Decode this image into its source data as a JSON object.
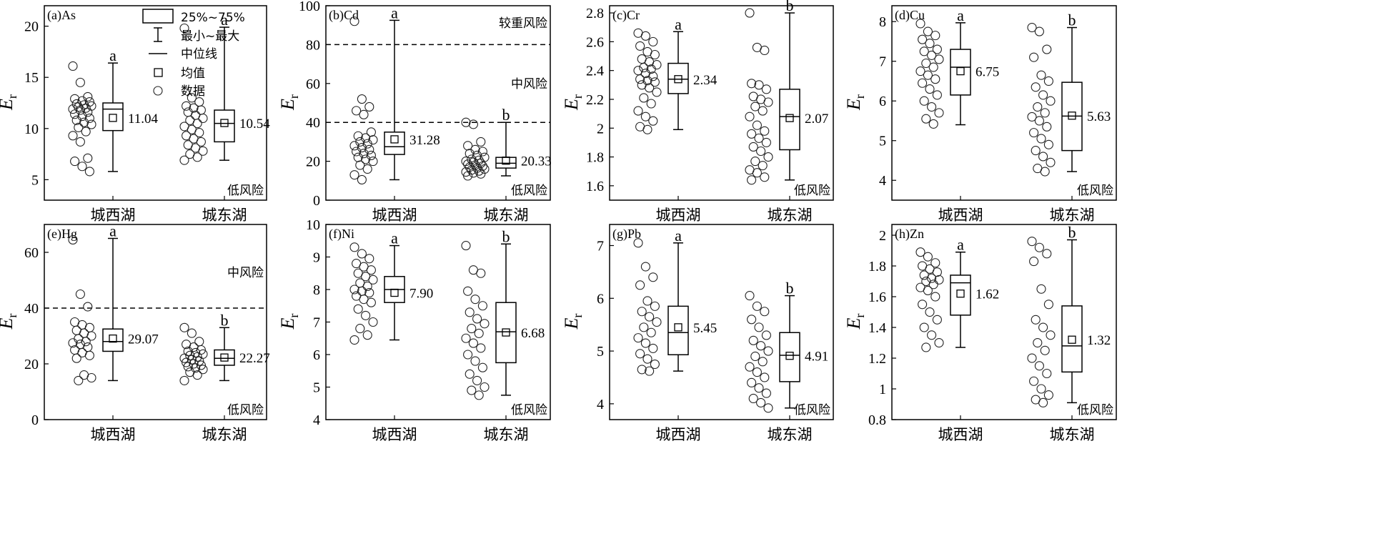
{
  "chart_data": [
    {
      "type": "box",
      "title": "(a)As",
      "ylabel_main": "E",
      "ylabel_sub": "r",
      "ylim": [
        3,
        22
      ],
      "yticks": [
        5,
        10,
        15,
        20
      ],
      "categories": [
        "城西湖",
        "城东湖"
      ],
      "boxes": [
        {
          "category": "城西湖",
          "min": 5.8,
          "q1": 9.8,
          "median": 11.9,
          "q3": 12.5,
          "max": 16.4,
          "mean": 11.04,
          "mean_label": "11.04",
          "sig": "a",
          "points": [
            16.1,
            14.5,
            13.1,
            12.9,
            12.7,
            12.6,
            12.4,
            12.3,
            12.2,
            12.1,
            12.0,
            11.9,
            11.8,
            11.6,
            11.4,
            11.2,
            11.0,
            10.8,
            10.6,
            10.4,
            10.1,
            9.7,
            9.3,
            8.7,
            7.1,
            6.8,
            6.3,
            5.8
          ]
        },
        {
          "category": "城东湖",
          "min": 6.9,
          "q1": 8.7,
          "median": 10.5,
          "q3": 11.8,
          "max": 19.9,
          "mean": 10.54,
          "mean_label": "10.54",
          "sig": "a",
          "points": [
            19.8,
            13.0,
            12.6,
            12.2,
            12.0,
            11.8,
            11.6,
            11.3,
            11.0,
            10.8,
            10.5,
            10.2,
            9.9,
            9.6,
            9.3,
            9.0,
            8.7,
            8.4,
            8.1,
            7.8,
            7.5,
            7.2,
            6.9
          ]
        }
      ],
      "hlines": [],
      "risk_labels": [
        "低风险"
      ]
    },
    {
      "type": "box",
      "title": "(b)Cd",
      "ylabel_main": "E",
      "ylabel_sub": "r",
      "ylim": [
        0,
        100
      ],
      "yticks": [
        0,
        20,
        40,
        60,
        80,
        100
      ],
      "categories": [
        "城西湖",
        "城东湖"
      ],
      "boxes": [
        {
          "category": "城西湖",
          "min": 10.5,
          "q1": 23.5,
          "median": 27.5,
          "q3": 35,
          "max": 92.5,
          "mean": 31.28,
          "mean_label": "31.28",
          "sig": "a",
          "points": [
            92,
            52,
            48,
            46,
            44,
            35,
            33,
            32,
            31,
            30,
            29,
            28,
            27,
            26,
            25,
            24,
            23,
            22,
            21,
            20,
            18,
            16,
            13,
            10.5
          ]
        },
        {
          "category": "城东湖",
          "min": 12.5,
          "q1": 16.5,
          "median": 19,
          "q3": 22,
          "max": 40,
          "mean": 20.33,
          "mean_label": "20.33",
          "sig": "b",
          "points": [
            40,
            39,
            30,
            28,
            26,
            25,
            24,
            23,
            22,
            21,
            20.5,
            20,
            19.5,
            19,
            18.5,
            18,
            17.5,
            17,
            16.5,
            16,
            15.5,
            15,
            14.5,
            14,
            13.5,
            12.5
          ]
        }
      ],
      "hlines": [
        80,
        40
      ],
      "risk_labels": [
        "较重风险",
        "中风险",
        "低风险"
      ]
    },
    {
      "type": "box",
      "title": "(c)Cr",
      "ylabel_main": "E",
      "ylabel_sub": "r",
      "ylim": [
        1.5,
        2.85
      ],
      "yticks": [
        1.6,
        1.8,
        2.0,
        2.2,
        2.4,
        2.6,
        2.8
      ],
      "categories": [
        "城西湖",
        "城东湖"
      ],
      "boxes": [
        {
          "category": "城西湖",
          "min": 1.99,
          "q1": 2.24,
          "median": 2.34,
          "q3": 2.45,
          "max": 2.67,
          "mean": 2.34,
          "mean_label": "2.34",
          "sig": "a",
          "points": [
            2.66,
            2.64,
            2.6,
            2.57,
            2.53,
            2.51,
            2.48,
            2.46,
            2.44,
            2.42,
            2.41,
            2.4,
            2.38,
            2.36,
            2.34,
            2.33,
            2.32,
            2.3,
            2.28,
            2.25,
            2.21,
            2.17,
            2.12,
            2.08,
            2.05,
            2.01,
            1.99
          ]
        },
        {
          "category": "城东湖",
          "min": 1.64,
          "q1": 1.85,
          "median": 2.08,
          "q3": 2.27,
          "max": 2.8,
          "mean": 2.07,
          "mean_label": "2.07",
          "sig": "b",
          "points": [
            2.8,
            2.56,
            2.54,
            2.31,
            2.3,
            2.27,
            2.22,
            2.2,
            2.18,
            2.15,
            2.12,
            2.08,
            2.02,
            1.98,
            1.96,
            1.93,
            1.9,
            1.87,
            1.84,
            1.8,
            1.77,
            1.74,
            1.71,
            1.69,
            1.66,
            1.64
          ]
        }
      ],
      "hlines": [],
      "risk_labels": [
        "低风险"
      ]
    },
    {
      "type": "box",
      "title": "(d)Cu",
      "ylabel_main": "E",
      "ylabel_sub": "r",
      "ylim": [
        3.5,
        8.4
      ],
      "yticks": [
        4,
        5,
        6,
        7,
        8
      ],
      "categories": [
        "城西湖",
        "城东湖"
      ],
      "boxes": [
        {
          "category": "城西湖",
          "min": 5.4,
          "q1": 6.15,
          "median": 6.85,
          "q3": 7.3,
          "max": 7.97,
          "mean": 6.75,
          "mean_label": "6.75",
          "sig": "a",
          "points": [
            7.95,
            7.75,
            7.65,
            7.55,
            7.45,
            7.3,
            7.25,
            7.15,
            7.05,
            6.95,
            6.85,
            6.75,
            6.65,
            6.55,
            6.45,
            6.3,
            6.15,
            6.0,
            5.85,
            5.7,
            5.55,
            5.42
          ]
        },
        {
          "category": "城东湖",
          "min": 4.22,
          "q1": 4.75,
          "median": 5.62,
          "q3": 6.47,
          "max": 7.85,
          "mean": 5.63,
          "mean_label": "5.63",
          "sig": "b",
          "points": [
            7.85,
            7.75,
            7.3,
            7.1,
            6.65,
            6.5,
            6.35,
            6.15,
            6.0,
            5.85,
            5.7,
            5.6,
            5.5,
            5.35,
            5.2,
            5.05,
            4.9,
            4.75,
            4.6,
            4.45,
            4.3,
            4.22
          ]
        }
      ],
      "hlines": [],
      "risk_labels": [
        "低风险"
      ]
    },
    {
      "type": "box",
      "title": "(e)Hg",
      "ylabel_main": "E",
      "ylabel_sub": "r",
      "ylim": [
        0,
        70
      ],
      "yticks": [
        0,
        20,
        40,
        60
      ],
      "categories": [
        "城西湖",
        "城东湖"
      ],
      "boxes": [
        {
          "category": "城西湖",
          "min": 14,
          "q1": 24.5,
          "median": 28,
          "q3": 32.5,
          "max": 65,
          "mean": 29.07,
          "mean_label": "29.07",
          "sig": "a",
          "points": [
            64.5,
            45,
            40.5,
            35,
            34,
            33,
            32,
            31,
            30,
            29,
            28,
            27.5,
            27,
            26,
            25,
            24,
            23,
            22,
            16,
            15,
            14
          ]
        },
        {
          "category": "城东湖",
          "min": 14,
          "q1": 19.5,
          "median": 22,
          "q3": 25,
          "max": 33,
          "mean": 22.27,
          "mean_label": "22.27",
          "sig": "b",
          "points": [
            33,
            31,
            28,
            27,
            26,
            25,
            24.5,
            24,
            23.5,
            23,
            22.5,
            22,
            21.5,
            21,
            20.5,
            20,
            19.5,
            19,
            18.5,
            18,
            17,
            16,
            14
          ]
        }
      ],
      "hlines": [
        40
      ],
      "risk_labels": [
        "中风险",
        "低风险"
      ]
    },
    {
      "type": "box",
      "title": "(f)Ni",
      "ylabel_main": "E",
      "ylabel_sub": "r",
      "ylim": [
        4,
        10
      ],
      "yticks": [
        4,
        5,
        6,
        7,
        8,
        9,
        10
      ],
      "categories": [
        "城西湖",
        "城东湖"
      ],
      "boxes": [
        {
          "category": "城西湖",
          "min": 6.45,
          "q1": 7.6,
          "median": 8.0,
          "q3": 8.4,
          "max": 9.35,
          "mean": 7.9,
          "mean_label": "7.90",
          "sig": "a",
          "points": [
            9.3,
            9.1,
            8.95,
            8.8,
            8.7,
            8.6,
            8.5,
            8.4,
            8.3,
            8.2,
            8.1,
            8.0,
            7.95,
            7.9,
            7.8,
            7.7,
            7.6,
            7.4,
            7.2,
            7.0,
            6.8,
            6.6,
            6.45
          ]
        },
        {
          "category": "城东湖",
          "min": 4.75,
          "q1": 5.75,
          "median": 6.7,
          "q3": 7.6,
          "max": 9.4,
          "mean": 6.68,
          "mean_label": "6.68",
          "sig": "b",
          "points": [
            9.35,
            8.6,
            8.5,
            7.95,
            7.7,
            7.5,
            7.3,
            7.1,
            6.95,
            6.8,
            6.65,
            6.5,
            6.35,
            6.2,
            6.0,
            5.8,
            5.6,
            5.4,
            5.2,
            5.0,
            4.9,
            4.75
          ]
        }
      ],
      "hlines": [],
      "risk_labels": [
        "低风险"
      ]
    },
    {
      "type": "box",
      "title": "(g)Pb",
      "ylabel_main": "E",
      "ylabel_sub": "r",
      "ylim": [
        3.7,
        7.4
      ],
      "yticks": [
        4,
        5,
        6,
        7
      ],
      "categories": [
        "城西湖",
        "城东湖"
      ],
      "boxes": [
        {
          "category": "城西湖",
          "min": 4.62,
          "q1": 4.93,
          "median": 5.35,
          "q3": 5.85,
          "max": 7.05,
          "mean": 5.45,
          "mean_label": "5.45",
          "sig": "a",
          "points": [
            7.05,
            6.6,
            6.4,
            6.25,
            5.95,
            5.85,
            5.75,
            5.65,
            5.55,
            5.45,
            5.35,
            5.25,
            5.15,
            5.05,
            4.95,
            4.85,
            4.75,
            4.65,
            4.62
          ]
        },
        {
          "category": "城东湖",
          "min": 3.92,
          "q1": 4.42,
          "median": 4.92,
          "q3": 5.35,
          "max": 6.05,
          "mean": 4.91,
          "mean_label": "4.91",
          "sig": "b",
          "points": [
            6.05,
            5.85,
            5.75,
            5.6,
            5.45,
            5.3,
            5.2,
            5.1,
            5.0,
            4.9,
            4.8,
            4.7,
            4.6,
            4.5,
            4.4,
            4.3,
            4.2,
            4.1,
            4.02,
            3.92
          ]
        }
      ],
      "hlines": [],
      "risk_labels": [
        "低风险"
      ]
    },
    {
      "type": "box",
      "title": "(h)Zn",
      "ylabel_main": "E",
      "ylabel_sub": "r",
      "ylim": [
        0.8,
        2.07
      ],
      "yticks": [
        0.8,
        1.0,
        1.2,
        1.4,
        1.6,
        1.8,
        2.0
      ],
      "categories": [
        "城西湖",
        "城东湖"
      ],
      "boxes": [
        {
          "category": "城西湖",
          "min": 1.27,
          "q1": 1.48,
          "median": 1.69,
          "q3": 1.74,
          "max": 1.89,
          "mean": 1.62,
          "mean_label": "1.62",
          "sig": "a",
          "points": [
            1.89,
            1.86,
            1.82,
            1.8,
            1.78,
            1.76,
            1.74,
            1.72,
            1.71,
            1.7,
            1.68,
            1.66,
            1.64,
            1.6,
            1.55,
            1.5,
            1.45,
            1.4,
            1.35,
            1.3,
            1.27
          ]
        },
        {
          "category": "城东湖",
          "min": 0.91,
          "q1": 1.11,
          "median": 1.28,
          "q3": 1.54,
          "max": 1.97,
          "mean": 1.32,
          "mean_label": "1.32",
          "sig": "b",
          "points": [
            1.96,
            1.92,
            1.88,
            1.83,
            1.65,
            1.55,
            1.45,
            1.4,
            1.35,
            1.3,
            1.25,
            1.2,
            1.15,
            1.1,
            1.05,
            1.0,
            0.96,
            0.93,
            0.91
          ]
        }
      ],
      "hlines": [],
      "risk_labels": [
        "低风险"
      ]
    }
  ],
  "legend": {
    "items": [
      {
        "symbol": "box",
        "label": "25%~75%"
      },
      {
        "symbol": "whisker",
        "label": "最小~最大"
      },
      {
        "symbol": "median",
        "label": "中位线"
      },
      {
        "symbol": "mean",
        "label": "均值"
      },
      {
        "symbol": "point",
        "label": "数据"
      }
    ]
  }
}
